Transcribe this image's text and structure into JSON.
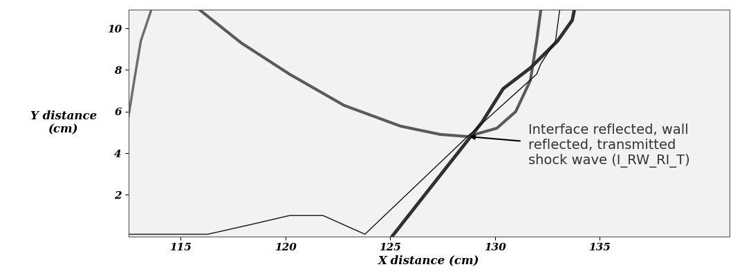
{
  "chart_data": {
    "type": "line",
    "x_label": "X distance (cm)",
    "y_label": "Y distance\n(cm)",
    "xlim": [
      112.5,
      141.2
    ],
    "xticks": [
      115,
      120,
      125,
      130,
      135
    ],
    "ylim": [
      0,
      10.9
    ],
    "yticks": [
      2,
      4,
      6,
      8,
      10
    ],
    "grid": false,
    "series": [
      {
        "color": "#6e6e6e",
        "line_style": "solid",
        "x": [
          112.5,
          112.8,
          113.1,
          113.6
        ],
        "values": [
          5.7,
          7.6,
          9.4,
          10.9
        ]
      },
      {
        "color": "#5a5a5a",
        "line_style": "solid",
        "x": [
          115.9,
          117.9,
          120.2,
          122.8,
          125.5,
          127.4,
          128.7,
          130.1,
          131.0,
          131.7,
          132.0,
          132.2
        ],
        "values": [
          10.9,
          9.3,
          7.8,
          6.3,
          5.3,
          4.9,
          4.8,
          5.2,
          6.0,
          7.5,
          9.4,
          10.9
        ]
      },
      {
        "color": "#303030",
        "line_style": "solid",
        "x": [
          125.1,
          129.4,
          130.4,
          131.7,
          133.0,
          133.7,
          133.8
        ],
        "values": [
          0.0,
          5.5,
          7.1,
          8.1,
          9.4,
          10.4,
          10.9
        ]
      },
      {
        "color": "#111111",
        "line_style": "solid",
        "x": [
          112.5,
          116.3,
          118.5,
          120.2,
          121.8,
          123.8,
          128.7,
          132.0,
          132.2,
          132.9,
          133.1
        ],
        "values": [
          0.1,
          0.1,
          0.6,
          1.0,
          1.0,
          0.1,
          4.8,
          7.8,
          8.3,
          9.4,
          10.9
        ]
      }
    ],
    "annotation": {
      "text": "Interface reflected, wall\nreflected, transmitted\nshock wave (I_RW_RI_T)",
      "arrow_to": [
        128.7,
        4.8
      ]
    }
  }
}
